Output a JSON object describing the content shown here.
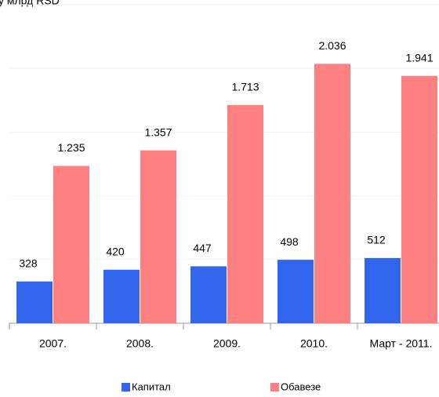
{
  "chart_data": {
    "type": "bar",
    "y_label": "у млрд RSD",
    "categories": [
      "2007.",
      "2008.",
      "2009.",
      "2010.",
      "Март - 2011."
    ],
    "series": [
      {
        "name": "Капитал",
        "color": "#3366ee",
        "values": [
          328,
          420,
          447,
          498,
          512
        ]
      },
      {
        "name": "Обавезе",
        "color": "#ff8080",
        "values": [
          1235,
          1357,
          1713,
          2036,
          1941
        ],
        "value_labels": [
          "1.235",
          "1.357",
          "1.713",
          "2.036",
          "1.941"
        ]
      }
    ],
    "ylim": [
      0,
      2500
    ],
    "yticks": [
      0,
      500,
      1000,
      1500,
      2000,
      2500
    ],
    "grid": true
  }
}
